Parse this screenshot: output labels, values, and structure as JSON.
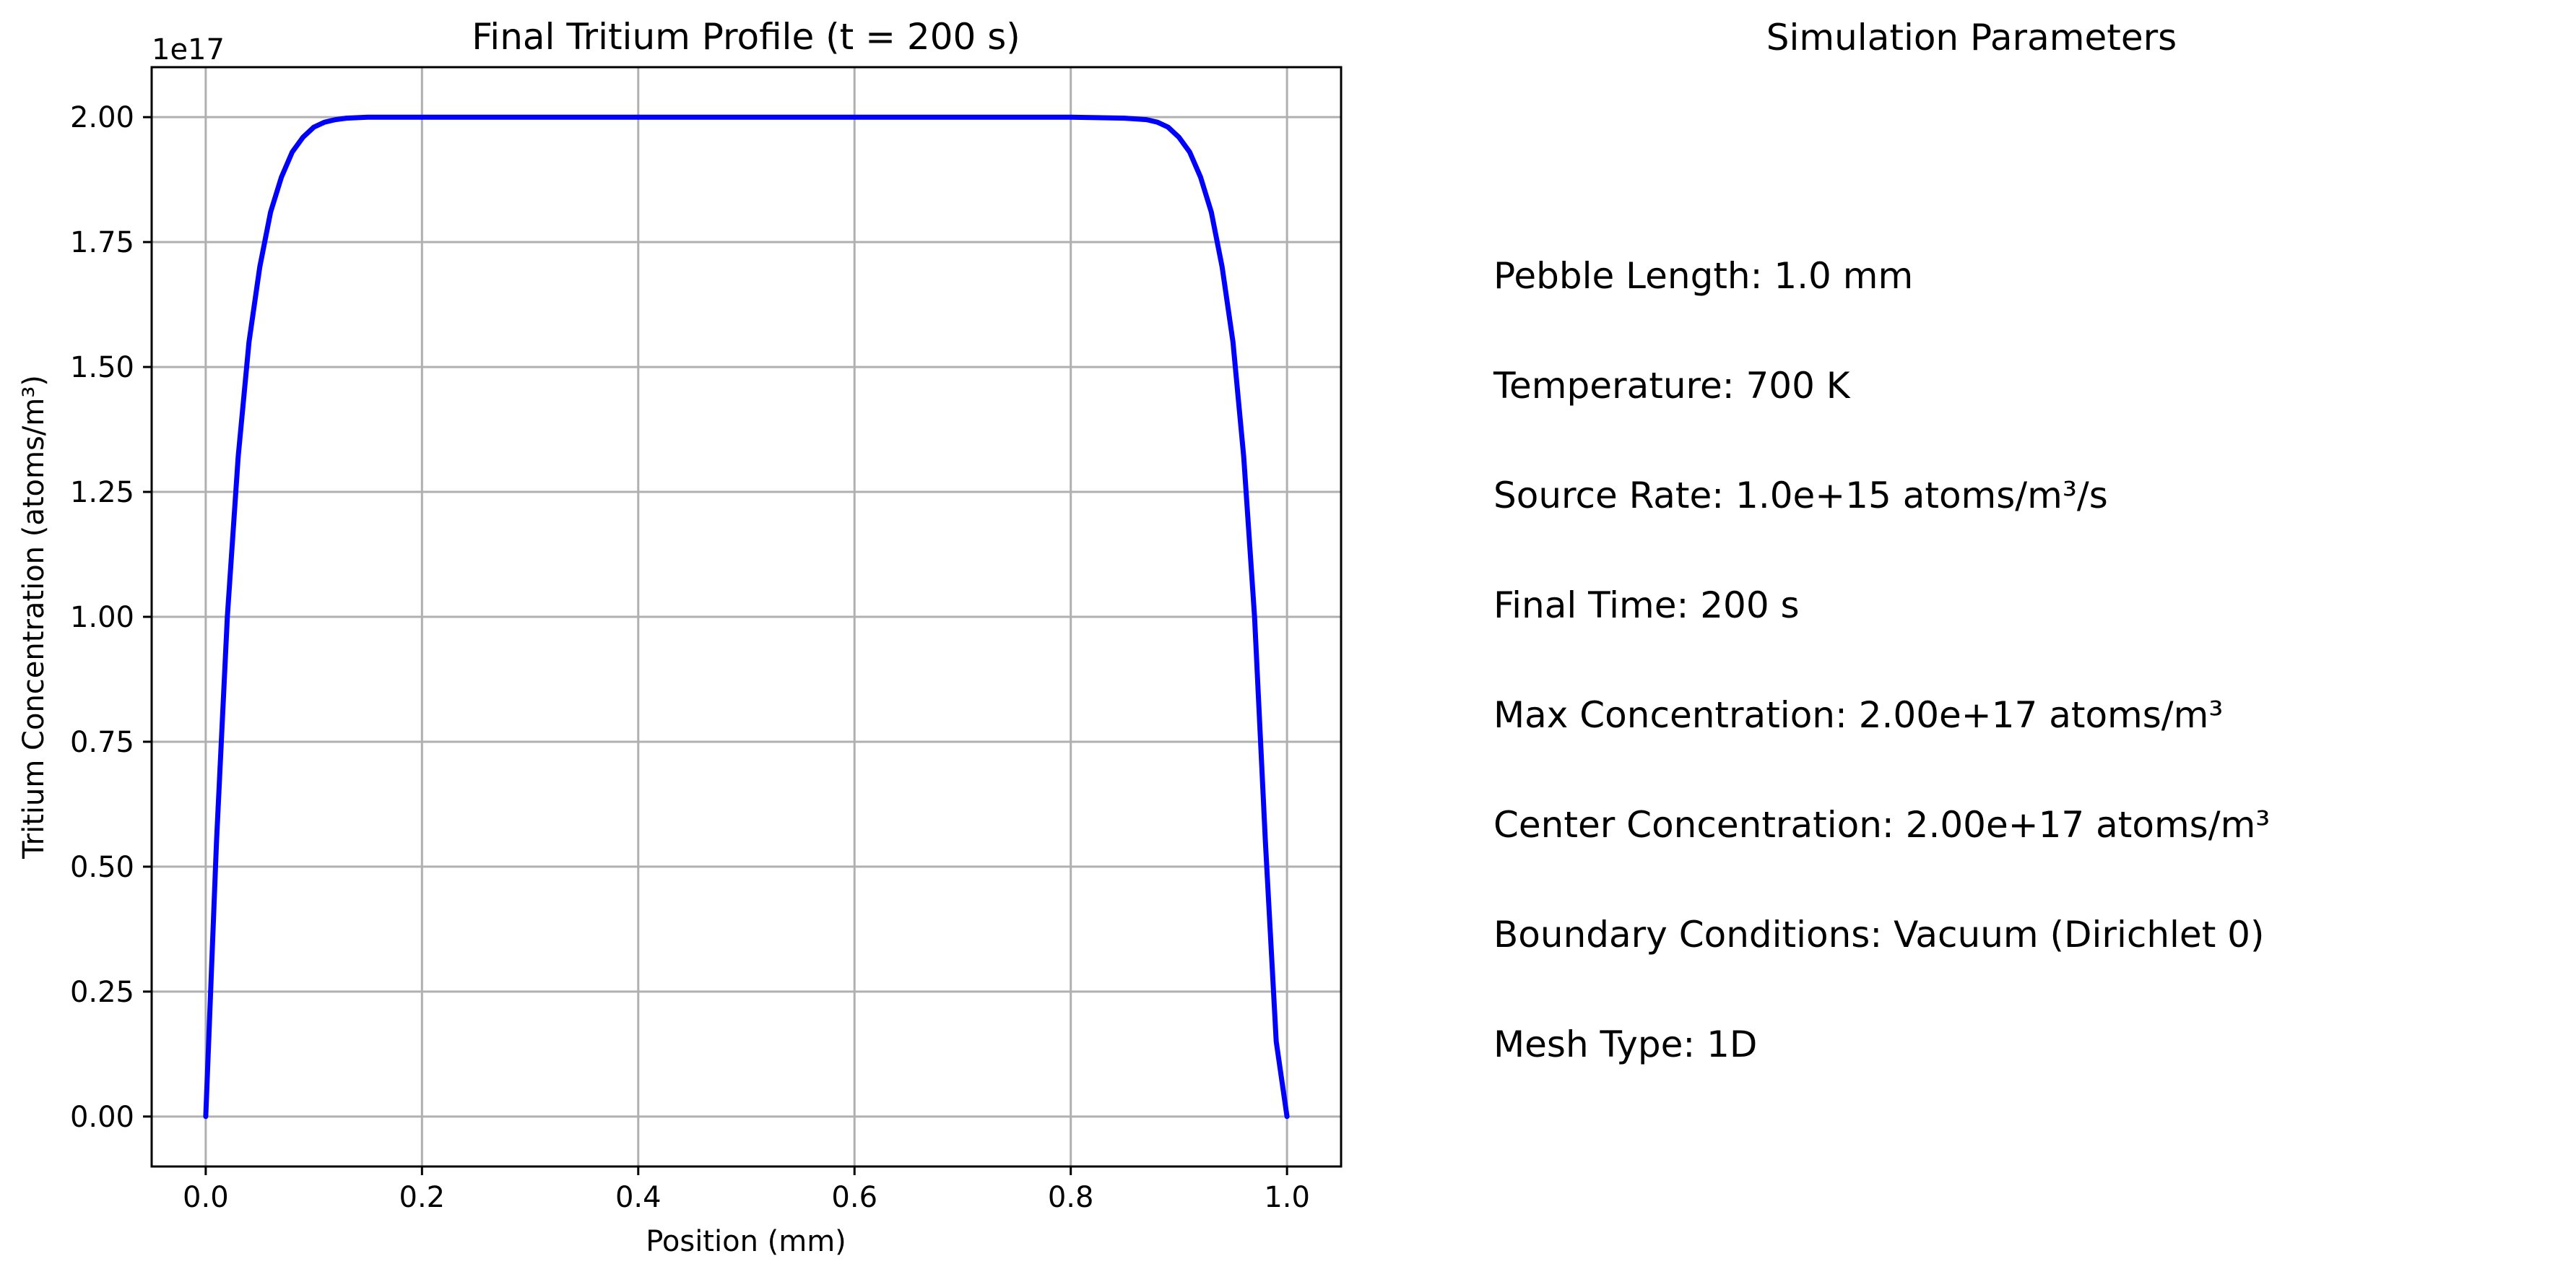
{
  "chart_data": {
    "type": "line",
    "title": "Final Tritium Profile (t = 200 s)",
    "xlabel": "Position (mm)",
    "ylabel": "Tritium Concentration (atoms/m³)",
    "y_offset_label": "1e17",
    "xlim": [
      -0.05,
      1.05
    ],
    "ylim": [
      -0.1,
      2.1
    ],
    "x_ticks": [
      0.0,
      0.2,
      0.4,
      0.6,
      0.8,
      1.0
    ],
    "x_tick_labels": [
      "0.0",
      "0.2",
      "0.4",
      "0.6",
      "0.8",
      "1.0"
    ],
    "y_ticks": [
      0.0,
      0.25,
      0.5,
      0.75,
      1.0,
      1.25,
      1.5,
      1.75,
      2.0
    ],
    "y_tick_labels": [
      "0.00",
      "0.25",
      "0.50",
      "0.75",
      "1.00",
      "1.25",
      "1.50",
      "1.75",
      "2.00"
    ],
    "grid": true,
    "series": [
      {
        "color": "#0000ff",
        "x": [
          0.0,
          0.01,
          0.02,
          0.03,
          0.04,
          0.05,
          0.06,
          0.07,
          0.08,
          0.09,
          0.1,
          0.11,
          0.12,
          0.13,
          0.15,
          0.2,
          0.3,
          0.4,
          0.5,
          0.6,
          0.7,
          0.8,
          0.85,
          0.87,
          0.88,
          0.89,
          0.9,
          0.91,
          0.92,
          0.93,
          0.94,
          0.95,
          0.96,
          0.97,
          0.98,
          0.99,
          1.0
        ],
        "y": [
          0.0,
          0.55,
          1.0,
          1.32,
          1.55,
          1.7,
          1.81,
          1.88,
          1.93,
          1.96,
          1.98,
          1.99,
          1.995,
          1.998,
          2.0,
          2.0,
          2.0,
          2.0,
          2.0,
          2.0,
          2.0,
          2.0,
          1.998,
          1.995,
          1.99,
          1.98,
          1.96,
          1.93,
          1.88,
          1.81,
          1.7,
          1.55,
          1.32,
          1.0,
          0.55,
          0.15,
          0.0
        ]
      }
    ]
  },
  "parameters": {
    "title": "Simulation Parameters",
    "lines": [
      "Pebble Length: 1.0 mm",
      "Temperature: 700 K",
      "Source Rate: 1.0e+15 atoms/m³/s",
      "Final Time: 200 s",
      "Max Concentration: 2.00e+17 atoms/m³",
      "Center Concentration: 2.00e+17 atoms/m³",
      "Boundary Conditions: Vacuum (Dirichlet 0)",
      "Mesh Type: 1D"
    ]
  }
}
